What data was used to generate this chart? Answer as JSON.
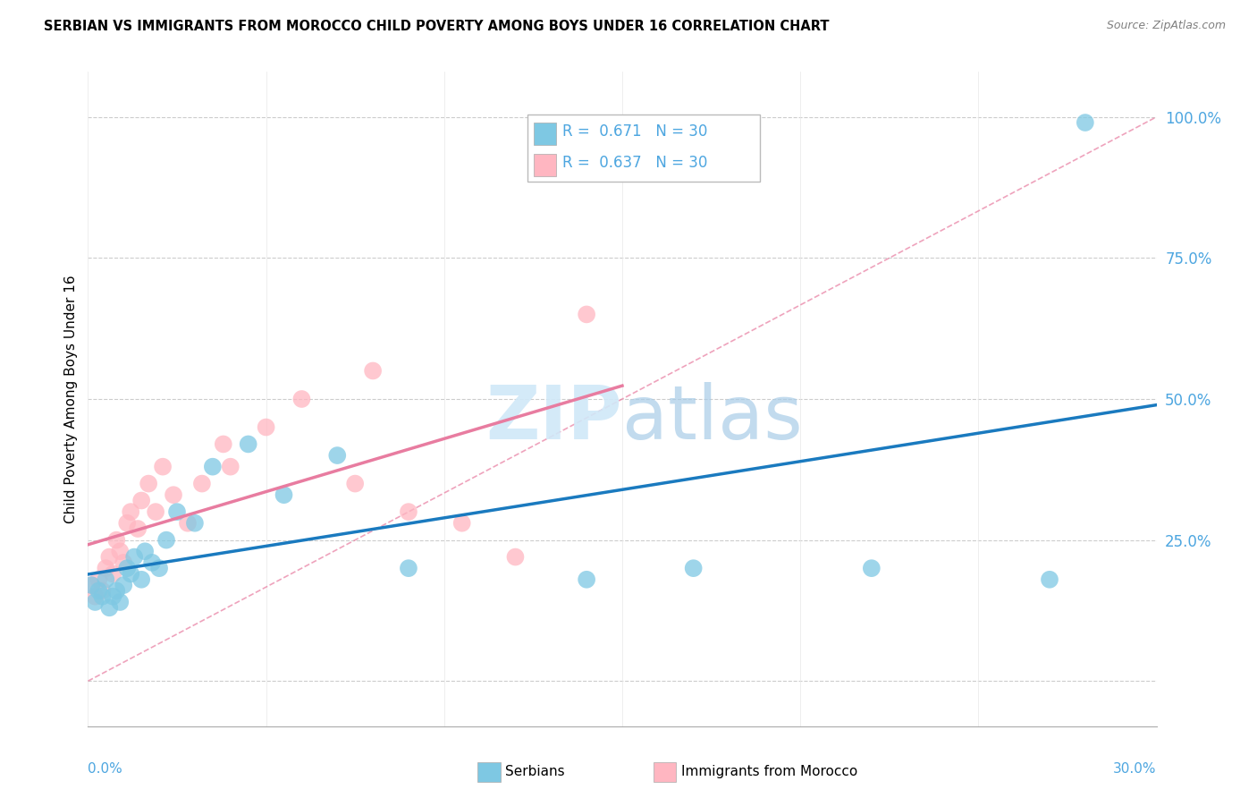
{
  "title": "SERBIAN VS IMMIGRANTS FROM MOROCCO CHILD POVERTY AMONG BOYS UNDER 16 CORRELATION CHART",
  "source": "Source: ZipAtlas.com",
  "ylabel": "Child Poverty Among Boys Under 16",
  "ytick_values": [
    0,
    25,
    50,
    75,
    100
  ],
  "ytick_labels": [
    "",
    "25.0%",
    "50.0%",
    "75.0%",
    "100.0%"
  ],
  "xlim": [
    0,
    30
  ],
  "ylim": [
    -8,
    108
  ],
  "serbian_color": "#7ec8e3",
  "morocco_color": "#ffb6c1",
  "serbian_line_color": "#1a7abf",
  "morocco_line_color": "#e87ca0",
  "diagonal_color": "#e87ca0",
  "text_color_blue": "#4da6e0",
  "watermark_color": "#d0e8f8",
  "serbian_scatter_x": [
    0.1,
    0.2,
    0.3,
    0.4,
    0.5,
    0.6,
    0.7,
    0.8,
    0.9,
    1.0,
    1.1,
    1.2,
    1.3,
    1.5,
    1.6,
    1.8,
    2.0,
    2.2,
    2.5,
    3.0,
    3.5,
    4.5,
    5.5,
    7.0,
    9.0,
    14.0,
    17.0,
    22.0,
    27.0,
    28.0
  ],
  "serbian_scatter_y": [
    17,
    14,
    16,
    15,
    18,
    13,
    15,
    16,
    14,
    17,
    20,
    19,
    22,
    18,
    23,
    21,
    20,
    25,
    30,
    28,
    38,
    42,
    33,
    40,
    20,
    18,
    20,
    20,
    18,
    99
  ],
  "morocco_scatter_x": [
    0.1,
    0.2,
    0.3,
    0.4,
    0.5,
    0.6,
    0.7,
    0.8,
    0.9,
    1.0,
    1.1,
    1.2,
    1.4,
    1.5,
    1.7,
    1.9,
    2.1,
    2.4,
    2.8,
    3.2,
    3.8,
    4.0,
    5.0,
    6.0,
    7.5,
    8.0,
    9.0,
    10.5,
    12.0,
    14.0
  ],
  "morocco_scatter_y": [
    17,
    15,
    18,
    16,
    20,
    22,
    19,
    25,
    23,
    21,
    28,
    30,
    27,
    32,
    35,
    30,
    38,
    33,
    28,
    35,
    42,
    38,
    45,
    50,
    35,
    55,
    30,
    28,
    22,
    65
  ],
  "legend_r1_val": "0.671",
  "legend_r2_val": "0.637",
  "legend_n": "30",
  "bottom_legend_labels": [
    "Serbians",
    "Immigrants from Morocco"
  ]
}
